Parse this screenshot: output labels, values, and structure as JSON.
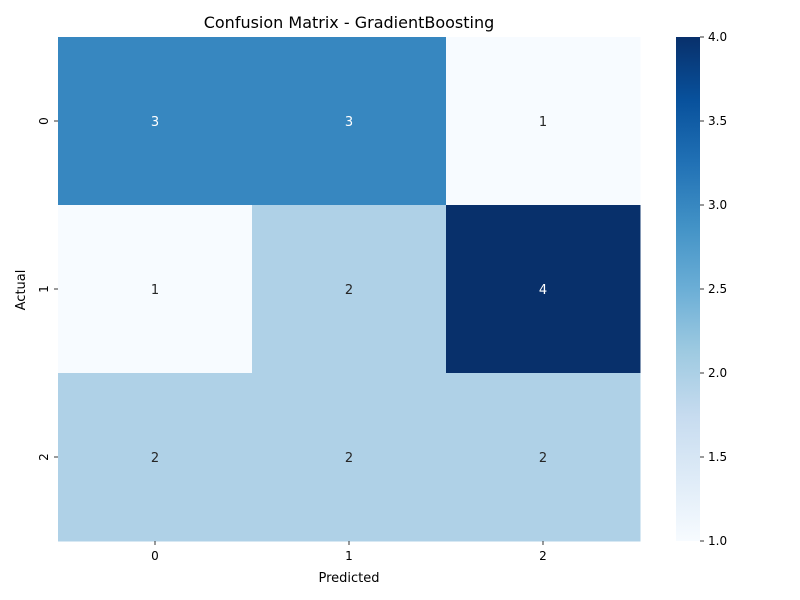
{
  "chart_data": {
    "type": "heatmap",
    "title": "Confusion Matrix - GradientBoosting",
    "xlabel": "Predicted",
    "ylabel": "Actual",
    "x_categories": [
      "0",
      "1",
      "2"
    ],
    "y_categories": [
      "0",
      "1",
      "2"
    ],
    "values": [
      [
        3,
        3,
        1
      ],
      [
        1,
        2,
        4
      ],
      [
        2,
        2,
        2
      ]
    ],
    "colormap": "Blues",
    "vmin": 1.0,
    "vmax": 4.0,
    "colorbar_ticks": [
      "1.0",
      "1.5",
      "2.0",
      "2.5",
      "3.0",
      "3.5",
      "4.0"
    ],
    "cell_colors": {
      "1": "#f7fbff",
      "2": "#afd1e7",
      "3": "#3787c0",
      "4": "#08306b"
    },
    "annotation_colors": {
      "light_cell": "#262626",
      "dark_cell": "#ffffff"
    }
  }
}
